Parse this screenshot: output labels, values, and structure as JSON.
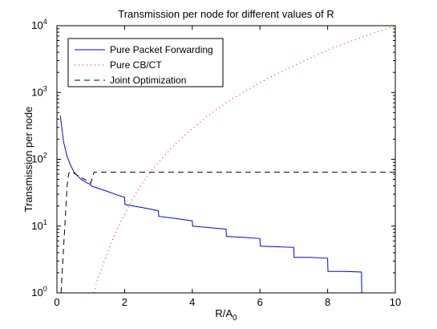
{
  "chart_data": {
    "type": "line",
    "title": "Transmission per node for different values of R",
    "xlabel": "R/A",
    "xlabel_subscript": "0",
    "ylabel": "Transmission per node",
    "xlim": [
      0,
      10
    ],
    "ylim": [
      1,
      10000
    ],
    "yscale": "log",
    "grid": false,
    "legend_position": "top-left",
    "x_ticks": [
      0,
      2,
      4,
      6,
      8,
      10
    ],
    "x_tick_labels": [
      "0",
      "2",
      "4",
      "6",
      "8",
      "10"
    ],
    "y_ticks": [
      1,
      10,
      100,
      1000,
      10000
    ],
    "y_tick_labels": [
      {
        "base": "10",
        "exp": "0"
      },
      {
        "base": "10",
        "exp": "1"
      },
      {
        "base": "10",
        "exp": "2"
      },
      {
        "base": "10",
        "exp": "3"
      },
      {
        "base": "10",
        "exp": "4"
      }
    ],
    "series": [
      {
        "name": "Pure Packet Forwarding",
        "color": "#0000ff",
        "style": "solid",
        "x": [
          0.1,
          0.15,
          0.2,
          0.3,
          0.4,
          0.5,
          0.6,
          0.7,
          0.8,
          0.9,
          1.0,
          1.01,
          1.2,
          1.5,
          1.8,
          2.0,
          2.01,
          2.5,
          3.0,
          3.01,
          3.5,
          4.0,
          4.01,
          4.5,
          5.0,
          5.01,
          5.5,
          6.0,
          6.01,
          6.5,
          7.0,
          7.01,
          7.5,
          8.0,
          8.01,
          8.5,
          9.0,
          9.01,
          9.5,
          10.0
        ],
        "y": [
          450,
          280,
          180,
          110,
          82,
          65,
          57,
          51,
          47,
          44,
          42,
          40,
          37,
          33,
          29,
          27,
          21,
          19,
          17,
          14,
          13,
          12,
          10,
          9.5,
          9,
          7,
          6.8,
          6.5,
          5,
          4.9,
          4.8,
          3.4,
          3.4,
          3.3,
          2.1,
          2.1,
          2.05,
          1,
          1,
          1
        ]
      },
      {
        "name": "Pure CB/CT",
        "color": "#ff0000",
        "style": "dotted",
        "x": [
          1.1,
          1.2,
          1.4,
          1.6,
          1.8,
          2.0,
          2.25,
          2.5,
          2.75,
          3.0,
          3.5,
          4.0,
          4.5,
          5.0,
          5.5,
          6.0,
          6.5,
          7.0,
          7.5,
          8.0,
          8.5,
          9.0,
          9.5,
          10.0
        ],
        "y": [
          1,
          1.6,
          3,
          5.5,
          9.5,
          15,
          26,
          42,
          63,
          90,
          170,
          290,
          460,
          700,
          1000,
          1400,
          1900,
          2500,
          3300,
          4300,
          5400,
          6700,
          8200,
          10000
        ]
      },
      {
        "name": "Joint Optimization",
        "color": "#000000",
        "style": "dashed",
        "x": [
          0.12,
          0.2,
          0.3,
          0.35,
          0.45,
          0.55,
          0.7,
          0.85,
          1.0,
          1.1,
          2.0,
          4.0,
          6.0,
          8.0,
          10.0
        ],
        "y": [
          1,
          5,
          40,
          62,
          65,
          60,
          54,
          49,
          44,
          64,
          64,
          64,
          64,
          64,
          64
        ]
      }
    ]
  }
}
